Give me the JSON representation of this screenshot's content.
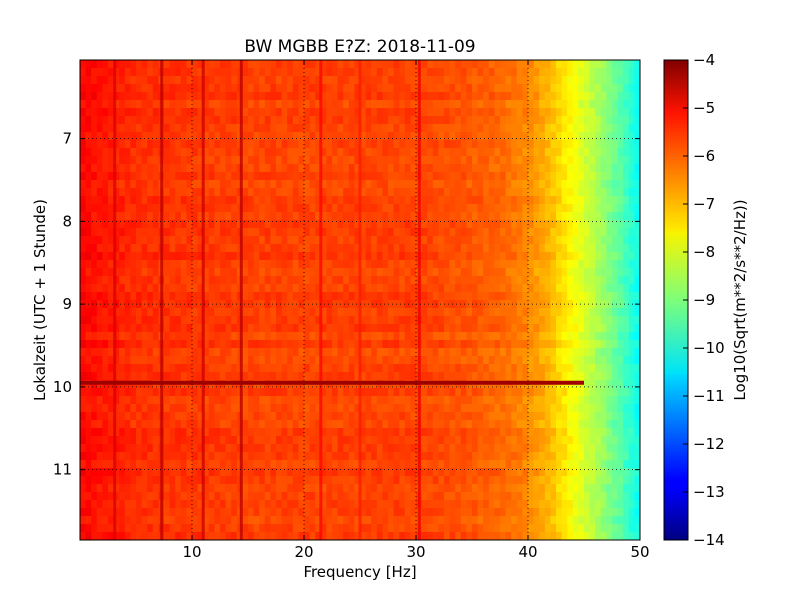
{
  "chart_data": {
    "type": "heatmap",
    "title": "BW MGBB E?Z: 2018-11-09",
    "xlabel": "Frequency [Hz]",
    "ylabel": "Lokalzeit (UTC + 1 Stunde)",
    "xlim": [
      0,
      50
    ],
    "ylim": [
      11.85,
      6.05
    ],
    "y_inverted": true,
    "x_ticks": [
      10,
      20,
      30,
      40,
      50
    ],
    "y_ticks": [
      7,
      8,
      9,
      10,
      11
    ],
    "grid": true,
    "grid_style": "dotted",
    "colormap": "jet",
    "colorbar": {
      "label": "Log10(Sqrt(m**2/s**2/Hz))",
      "range": [
        -14,
        -4
      ],
      "ticks": [
        -4,
        -5,
        -6,
        -7,
        -8,
        -9,
        -10,
        -11,
        -12,
        -13,
        -14
      ]
    },
    "spectrum_profile": {
      "frequency_hz": [
        0,
        5,
        10,
        15,
        20,
        25,
        30,
        35,
        38,
        40,
        42,
        44,
        46,
        48,
        50
      ],
      "typical_log10_amplitude": [
        -5.3,
        -5.7,
        -5.8,
        -5.9,
        -5.9,
        -5.9,
        -5.9,
        -6.1,
        -6.3,
        -6.6,
        -7.1,
        -7.8,
        -8.5,
        -9.3,
        -10.2
      ]
    },
    "annotations_features": [
      {
        "kind": "vertical_line",
        "frequency_hz": 3.1,
        "log10_amplitude": -4.9
      },
      {
        "kind": "vertical_line",
        "frequency_hz": 7.3,
        "log10_amplitude": -4.6
      },
      {
        "kind": "vertical_line",
        "frequency_hz": 11.0,
        "log10_amplitude": -4.8
      },
      {
        "kind": "vertical_line",
        "frequency_hz": 14.4,
        "log10_amplitude": -4.6
      },
      {
        "kind": "vertical_line",
        "frequency_hz": 21.5,
        "log10_amplitude": -5.3
      },
      {
        "kind": "vertical_line",
        "frequency_hz": 25.0,
        "log10_amplitude": -5.5
      },
      {
        "kind": "vertical_line",
        "frequency_hz": 30.3,
        "log10_amplitude": -5.1
      },
      {
        "kind": "horizontal_event",
        "time_hour": 9.95,
        "log10_amplitude": -4.3
      }
    ]
  }
}
